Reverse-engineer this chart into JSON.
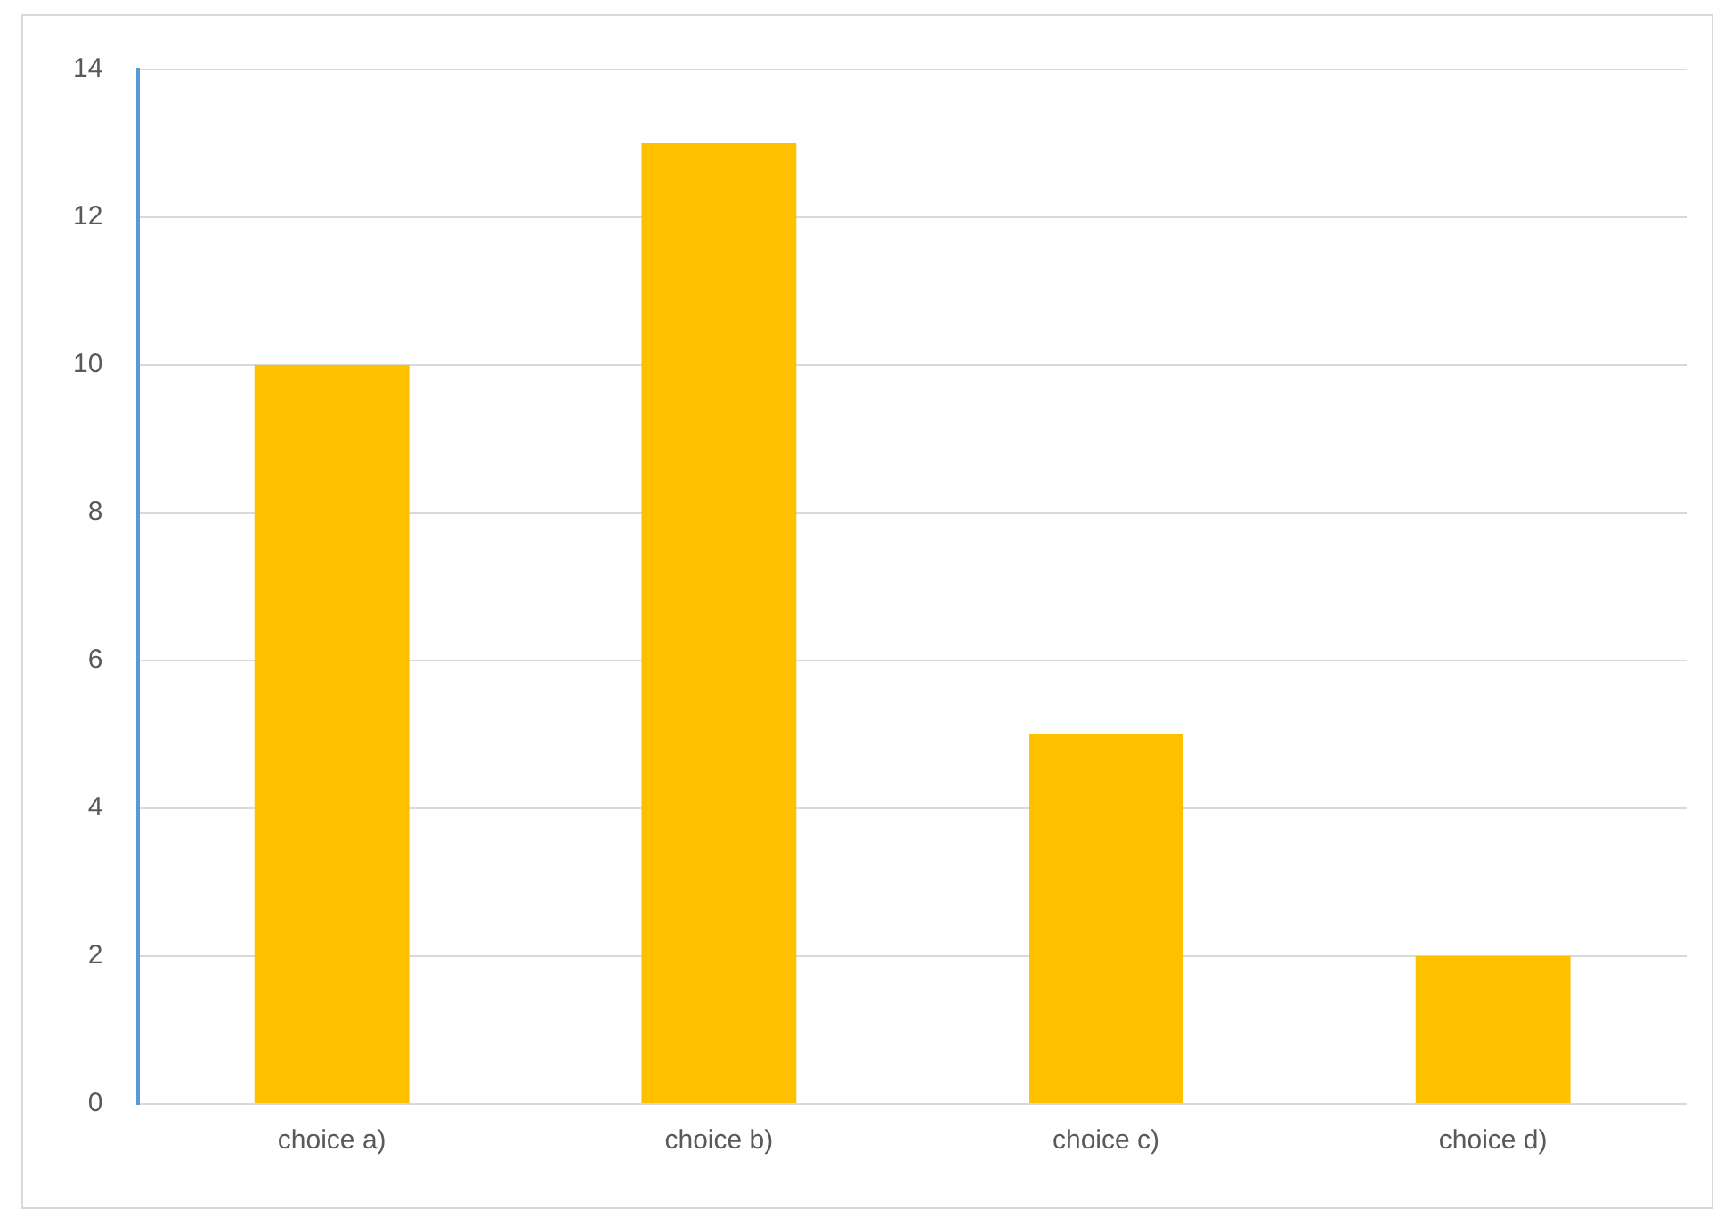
{
  "chart_data": {
    "type": "bar",
    "categories": [
      "choice a)",
      "choice b)",
      "choice c)",
      "choice d)"
    ],
    "values": [
      10,
      13,
      5,
      2
    ],
    "color": "#ffc000",
    "ylim": [
      0,
      14
    ],
    "yticks": [
      0,
      2,
      4,
      6,
      8,
      10,
      12,
      14
    ],
    "grid": "y",
    "legend": false
  }
}
